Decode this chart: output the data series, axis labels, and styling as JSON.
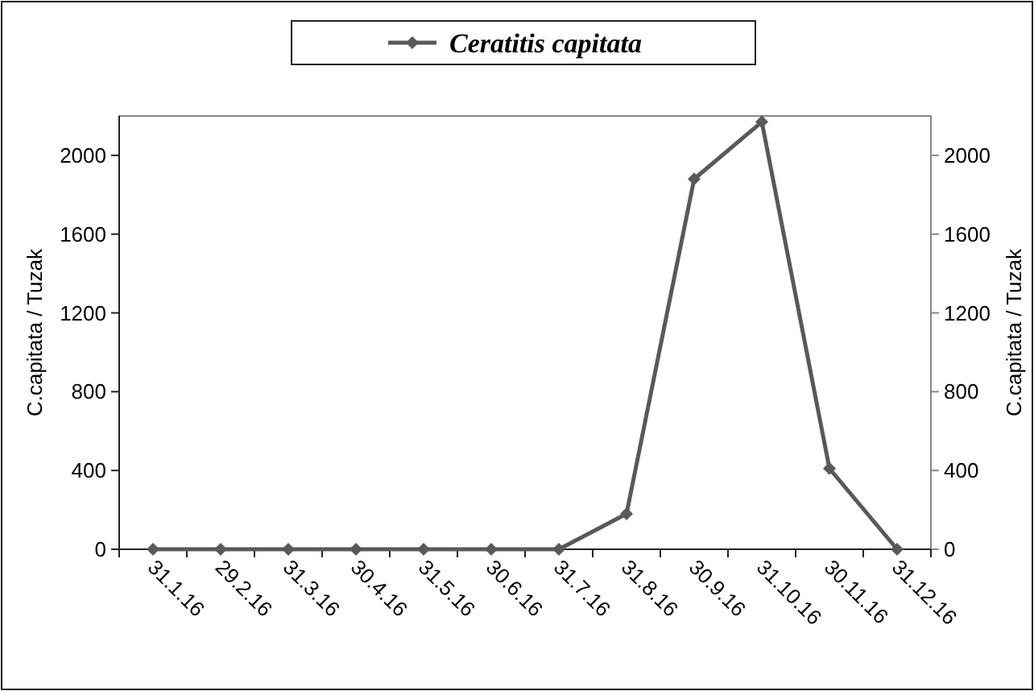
{
  "chart_data": {
    "type": "line",
    "ylabel": "C.capitata / Tuzak",
    "y2label": "C.capitata / Tuzak",
    "categories": [
      "31.1.16",
      "29.2.16",
      "31.3.16",
      "30.4.16",
      "31.5.16",
      "30.6.16",
      "31.7.16",
      "31.8.16",
      "30.9.16",
      "31.10.16",
      "30.11.16",
      "31.12.16"
    ],
    "series": [
      {
        "name": "Ceratitis capitata",
        "color": "#595959",
        "values": [
          0,
          0,
          0,
          0,
          0,
          0,
          0,
          180,
          1880,
          2170,
          410,
          0
        ]
      }
    ],
    "ylim": [
      0,
      2200
    ],
    "yticks": [
      0,
      400,
      800,
      1200,
      1600,
      2000
    ],
    "y2lim": [
      0,
      2200
    ],
    "y2ticks": [
      0,
      400,
      800,
      1200,
      1600,
      2000
    ],
    "grid": false,
    "legend": "top",
    "marker": "diamond",
    "line_style": "solid"
  }
}
